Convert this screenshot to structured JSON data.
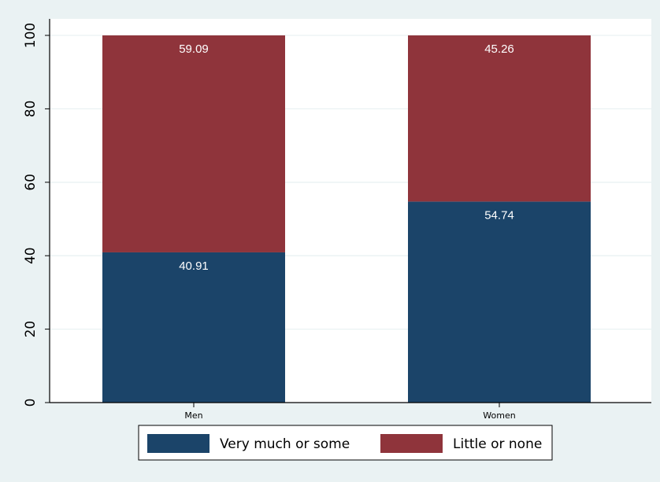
{
  "chart_data": {
    "type": "bar",
    "stacked": true,
    "categories": [
      "Men",
      "Women"
    ],
    "series": [
      {
        "name": "Very much or some",
        "values": [
          40.91,
          54.74
        ],
        "color": "#1b4469"
      },
      {
        "name": "Little or none",
        "values": [
          59.09,
          45.26
        ],
        "color": "#8f343b"
      }
    ],
    "data_labels": [
      [
        "40.91",
        "54.74"
      ],
      [
        "59.09",
        "45.26"
      ]
    ],
    "ylim": [
      0,
      100
    ],
    "yticks": [
      "0",
      "20",
      "40",
      "60",
      "80",
      "100"
    ],
    "title": "",
    "xlabel": "",
    "ylabel": "",
    "grid": true,
    "legend_position": "bottom",
    "colors": {
      "background": "#eaf2f3",
      "plot_background": "#ffffff",
      "grid": "#eaf2f3"
    }
  }
}
